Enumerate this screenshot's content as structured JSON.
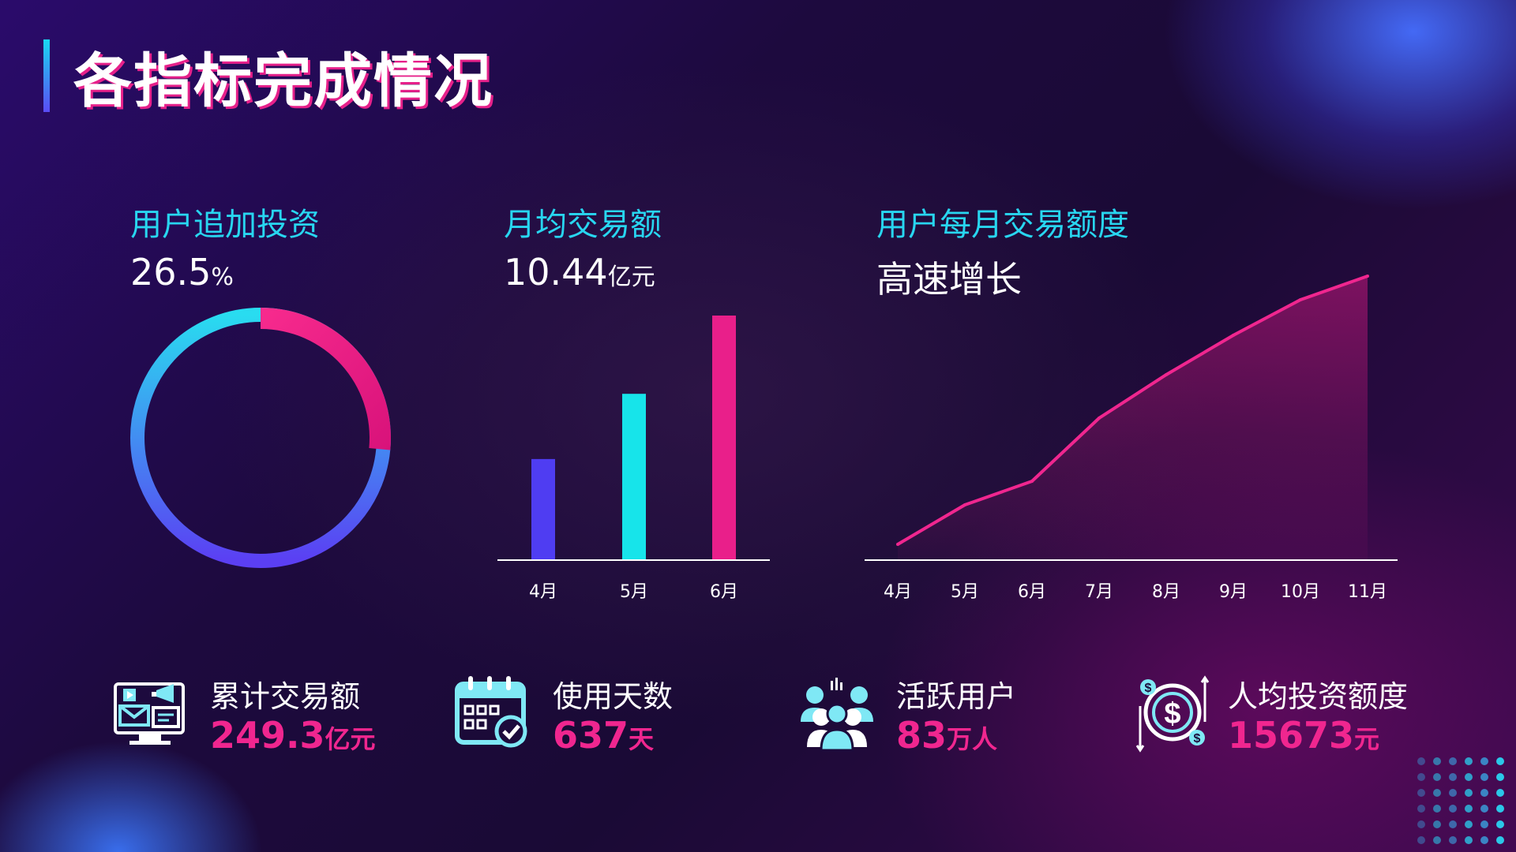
{
  "title": "各指标完成情况",
  "invest": {
    "label": "用户追加投资",
    "value": "26.5",
    "unit": "%"
  },
  "monthly": {
    "label": "月均交易额",
    "value": "10.44",
    "unit": "亿元"
  },
  "trend": {
    "label": "用户每月交易额度",
    "subtitle": "高速增长"
  },
  "stats": [
    {
      "icon": "monitor-media-icon",
      "label": "累计交易额",
      "value": "249.3",
      "unit": "亿元"
    },
    {
      "icon": "calendar-check-icon",
      "label": "使用天数",
      "value": "637",
      "unit": "天"
    },
    {
      "icon": "user-group-icon",
      "label": "活跃用户",
      "value": "83",
      "unit": "万人"
    },
    {
      "icon": "dollar-cycle-icon",
      "label": "人均投资额度",
      "value": "15673",
      "unit": "元"
    }
  ],
  "chart_data": [
    {
      "type": "pie",
      "values": [
        26.5,
        73.5
      ],
      "colors": [
        "#f0268f",
        "#2ad2f0"
      ]
    },
    {
      "type": "bar",
      "categories": [
        "4月",
        "5月",
        "6月"
      ],
      "values": [
        31,
        51,
        75
      ],
      "ylim": [
        0,
        75
      ],
      "colors": [
        "#4f3df2",
        "#17e4ea",
        "#e91f8a"
      ]
    },
    {
      "type": "area",
      "x": [
        "4月",
        "5月",
        "6月",
        "7月",
        "8月",
        "9月",
        "10月",
        "11月"
      ],
      "values": [
        4,
        14,
        20,
        36,
        47,
        57,
        66,
        72
      ],
      "ylim": [
        0,
        80
      ],
      "color": "#f0268f"
    }
  ]
}
